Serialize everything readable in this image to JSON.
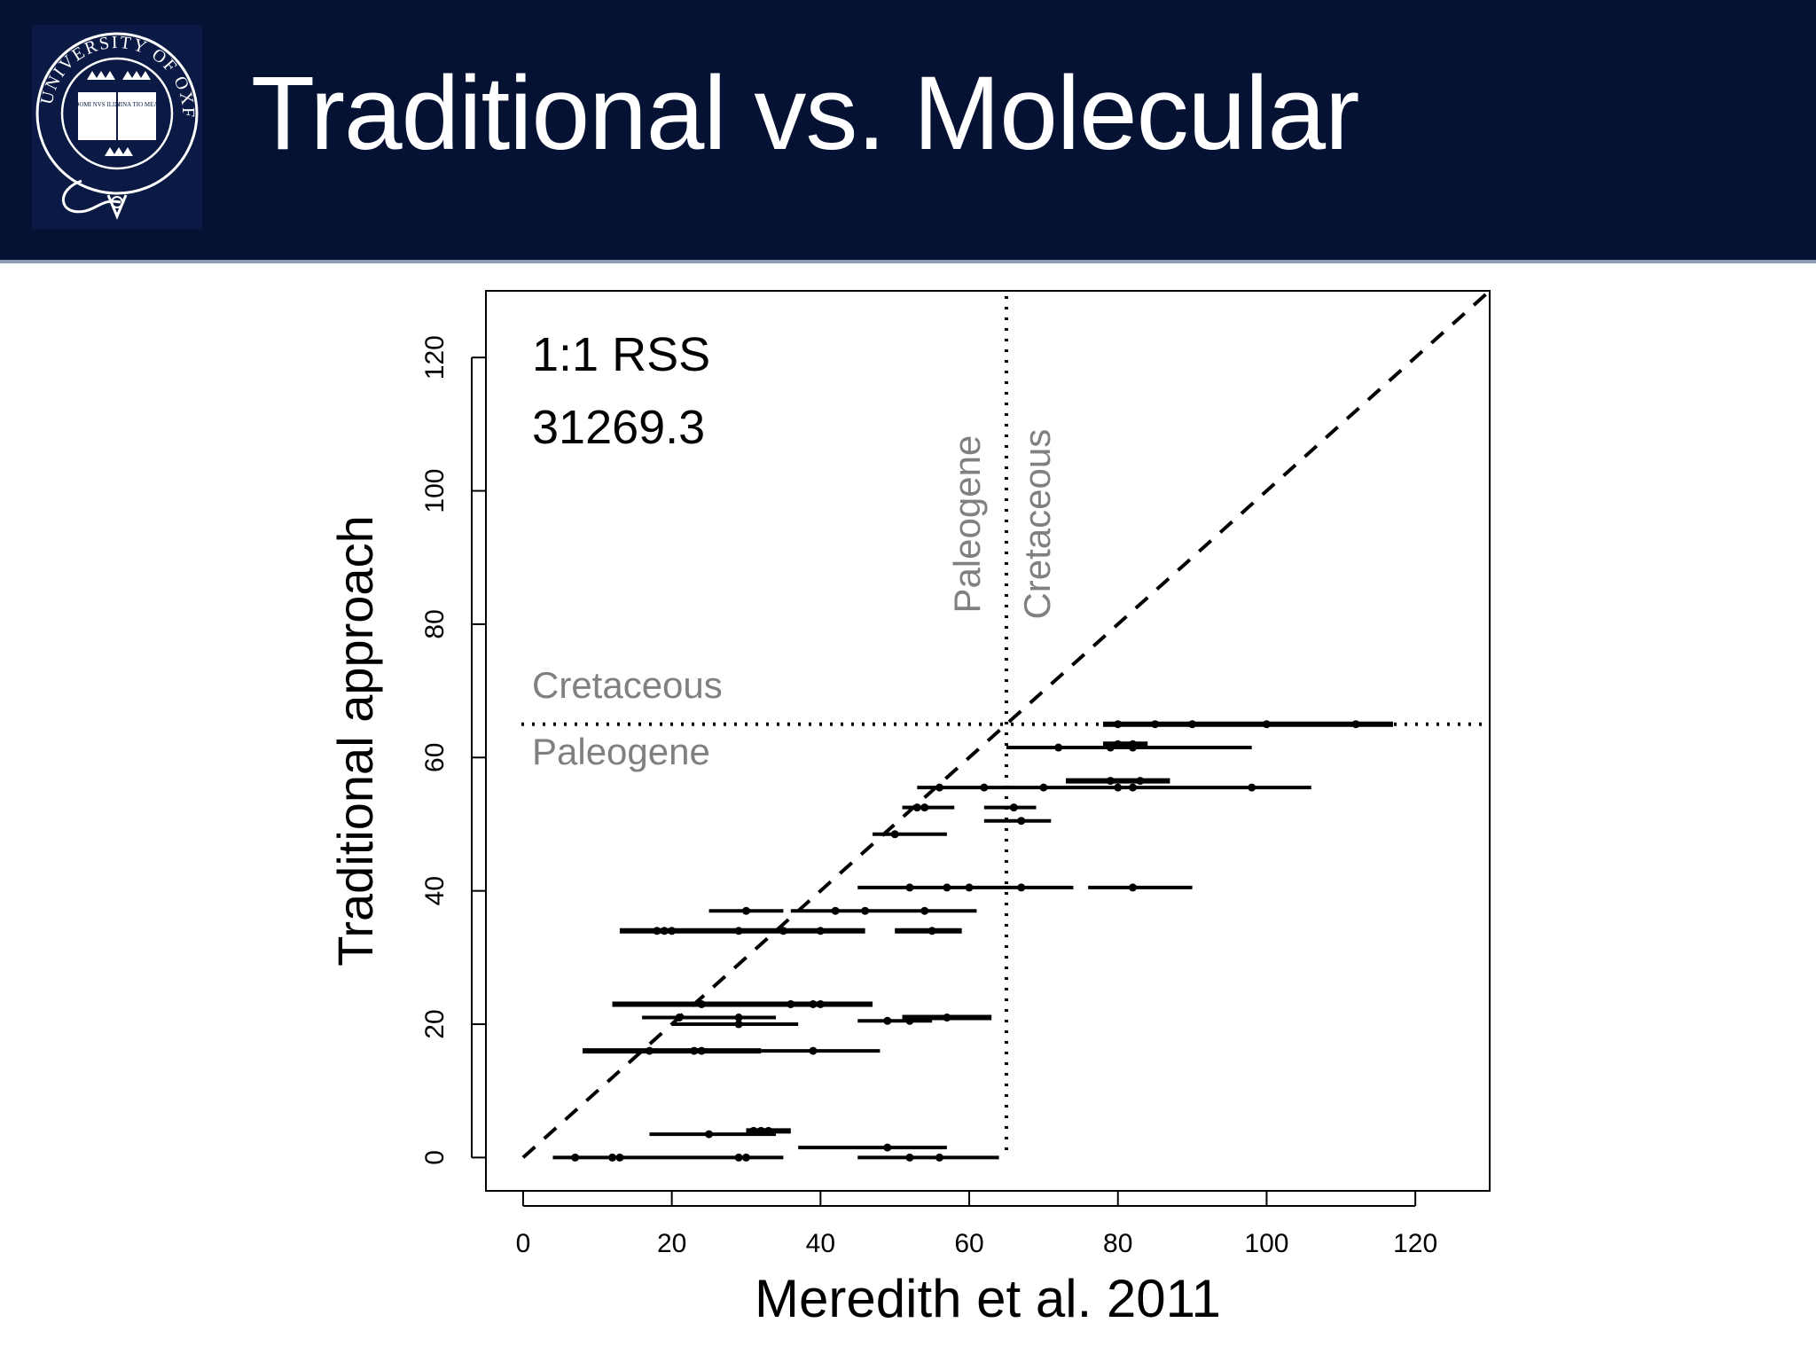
{
  "slide": {
    "title": "Traditional vs. Molecular"
  },
  "logo": {
    "text_top": "UNIVERSITY OF OXFORD",
    "book_left": "DOMI NVS ILLV",
    "book_right": "MINA TIO MEA"
  },
  "chart_data": {
    "type": "scatter",
    "xlabel": "Meredith et al. 2011",
    "ylabel": "Traditional approach",
    "xlim": [
      -5,
      130
    ],
    "ylim": [
      -5,
      130
    ],
    "xticks": [
      0,
      20,
      40,
      60,
      80,
      100,
      120
    ],
    "yticks": [
      0,
      20,
      40,
      60,
      80,
      100,
      120
    ],
    "xtick_labels": [
      "0",
      "20",
      "40",
      "60",
      "80",
      "100",
      "120"
    ],
    "ytick_labels": [
      "0",
      "20",
      "40",
      "60",
      "80",
      "100",
      "120"
    ],
    "grid": false,
    "reference_line": {
      "type": "1:1",
      "style": "dashed"
    },
    "boundary": {
      "value": 65,
      "style": "dotted",
      "color": "#000000"
    },
    "annotations": {
      "rss_label": "1:1 RSS",
      "rss_value": "31269.3",
      "horizontal_upper": "Cretaceous",
      "horizontal_lower": "Paleogene",
      "vertical_left": "Paleogene",
      "vertical_right": "Cretaceous",
      "annotation_color": "#808080"
    },
    "intervals": [
      {
        "y": 65,
        "x_min": 78,
        "x_max": 117,
        "points": [
          80,
          85,
          90,
          100,
          112
        ],
        "thick": true
      },
      {
        "y": 61.5,
        "x_min": 65,
        "x_max": 98,
        "points": [
          72,
          79,
          82
        ],
        "thick": false
      },
      {
        "y": 62,
        "x_min": 78,
        "x_max": 84,
        "points": [
          80,
          82
        ],
        "thick": true
      },
      {
        "y": 56.5,
        "x_min": 73,
        "x_max": 87,
        "points": [
          79,
          83
        ],
        "thick": true
      },
      {
        "y": 55.5,
        "x_min": 53,
        "x_max": 106,
        "points": [
          56,
          62,
          70,
          80,
          82,
          98
        ],
        "thick": false
      },
      {
        "y": 52.5,
        "x_min": 51,
        "x_max": 58,
        "points": [
          53,
          54
        ],
        "thick": false
      },
      {
        "y": 52.5,
        "x_min": 62,
        "x_max": 69,
        "points": [
          66
        ],
        "thick": false
      },
      {
        "y": 50.5,
        "x_min": 62,
        "x_max": 71,
        "points": [
          67
        ],
        "thick": false
      },
      {
        "y": 48.5,
        "x_min": 47,
        "x_max": 57,
        "points": [
          50
        ],
        "thick": false
      },
      {
        "y": 40.5,
        "x_min": 45,
        "x_max": 74,
        "points": [
          52,
          57,
          60,
          67
        ],
        "thick": false
      },
      {
        "y": 40.5,
        "x_min": 76,
        "x_max": 90,
        "points": [
          82
        ],
        "thick": false
      },
      {
        "y": 37,
        "x_min": 25,
        "x_max": 35,
        "points": [
          30
        ],
        "thick": false
      },
      {
        "y": 37,
        "x_min": 36,
        "x_max": 61,
        "points": [
          42,
          46,
          54
        ],
        "thick": false
      },
      {
        "y": 34,
        "x_min": 13,
        "x_max": 46,
        "points": [
          18,
          19,
          20,
          29,
          35,
          40
        ],
        "thick": true
      },
      {
        "y": 34,
        "x_min": 50,
        "x_max": 59,
        "points": [
          55
        ],
        "thick": true
      },
      {
        "y": 23,
        "x_min": 12,
        "x_max": 47,
        "points": [
          24,
          36,
          39,
          40
        ],
        "thick": true
      },
      {
        "y": 21,
        "x_min": 16,
        "x_max": 34,
        "points": [
          21,
          29
        ],
        "thick": false
      },
      {
        "y": 21,
        "x_min": 51,
        "x_max": 63,
        "points": [
          57
        ],
        "thick": true
      },
      {
        "y": 20.5,
        "x_min": 45,
        "x_max": 55,
        "points": [
          49,
          52
        ],
        "thick": false
      },
      {
        "y": 20,
        "x_min": 20,
        "x_max": 37,
        "points": [
          29
        ],
        "thick": false
      },
      {
        "y": 16,
        "x_min": 8,
        "x_max": 32,
        "points": [
          17,
          23,
          24
        ],
        "thick": true
      },
      {
        "y": 16,
        "x_min": 32,
        "x_max": 48,
        "points": [
          39
        ],
        "thick": false
      },
      {
        "y": 3.5,
        "x_min": 17,
        "x_max": 34,
        "points": [
          25
        ],
        "thick": false
      },
      {
        "y": 4,
        "x_min": 30,
        "x_max": 36,
        "points": [
          31,
          32,
          33
        ],
        "thick": true
      },
      {
        "y": 1.5,
        "x_min": 37,
        "x_max": 57,
        "points": [
          49
        ],
        "thick": false
      },
      {
        "y": 0,
        "x_min": 4,
        "x_max": 35,
        "points": [
          7,
          12,
          13,
          29,
          30
        ],
        "thick": false
      },
      {
        "y": 0,
        "x_min": 45,
        "x_max": 64,
        "points": [
          52,
          56
        ],
        "thick": false
      }
    ]
  }
}
